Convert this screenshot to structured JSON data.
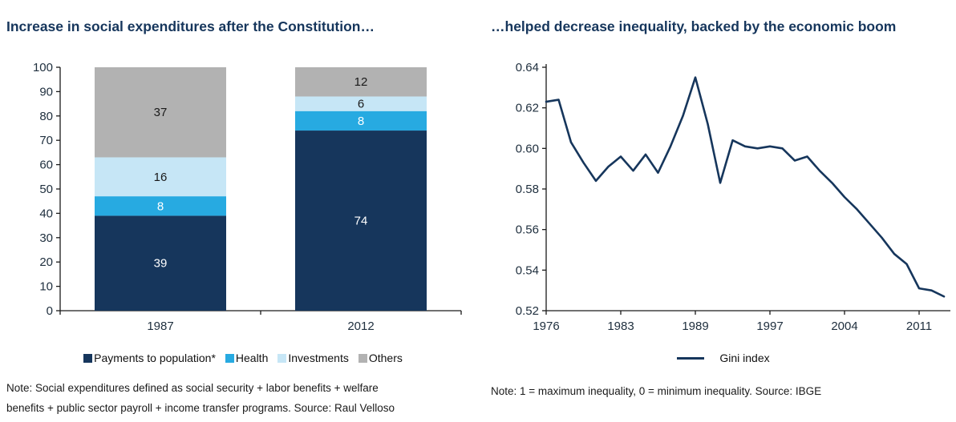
{
  "left_chart": {
    "title": "Increase in social expenditures after the Constitution…",
    "note_lines": [
      "Note: Social expenditures defined as social security + labor benefits + welfare",
      "benefits + public sector payroll + income transfer programs. Source: Raul Velloso"
    ]
  },
  "right_chart": {
    "title": "…helped decrease inequality, backed by the economic boom",
    "legend_label": "Gini index",
    "note": "Note: 1 = maximum inequality, 0 = minimum inequality. Source: IBGE"
  },
  "colors": {
    "navy": "#16365c",
    "cyan": "#27aae1",
    "light_blue": "#c6e6f6",
    "gray": "#b2b2b2"
  },
  "chart_data": [
    {
      "type": "bar",
      "stacked": true,
      "title": "Increase in social expenditures after the Constitution…",
      "categories": [
        "1987",
        "2012"
      ],
      "series": [
        {
          "name": "Payments to population*",
          "color": "#16365c",
          "label_color": "#ffffff",
          "values": [
            39,
            74
          ]
        },
        {
          "name": "Health",
          "color": "#27aae1",
          "label_color": "#ffffff",
          "values": [
            8,
            8
          ]
        },
        {
          "name": "Investments",
          "color": "#c6e6f6",
          "label_color": "#1a1a1a",
          "values": [
            16,
            6
          ]
        },
        {
          "name": "Others",
          "color": "#b2b2b2",
          "label_color": "#1a1a1a",
          "values": [
            37,
            12
          ]
        }
      ],
      "ylim": [
        0,
        100
      ],
      "ytick_step": 10,
      "grid": false,
      "legend_position": "bottom"
    },
    {
      "type": "line",
      "title": "…helped decrease inequality, backed by the economic boom",
      "series_name": "Gini index",
      "color": "#16365c",
      "x": [
        1976,
        1977,
        1978,
        1979,
        1981,
        1982,
        1983,
        1984,
        1985,
        1986,
        1987,
        1988,
        1989,
        1990,
        1992,
        1993,
        1995,
        1996,
        1997,
        1998,
        1999,
        2001,
        2002,
        2003,
        2004,
        2005,
        2006,
        2007,
        2008,
        2009,
        2011,
        2012,
        2013
      ],
      "y": [
        0.623,
        0.624,
        0.603,
        0.593,
        0.584,
        0.591,
        0.596,
        0.589,
        0.597,
        0.588,
        0.601,
        0.616,
        0.635,
        0.612,
        0.583,
        0.604,
        0.601,
        0.6,
        0.601,
        0.6,
        0.594,
        0.596,
        0.589,
        0.583,
        0.576,
        0.57,
        0.563,
        0.556,
        0.548,
        0.543,
        0.531,
        0.53,
        0.527
      ],
      "xticks": [
        1976,
        1983,
        1989,
        1997,
        2004,
        2011
      ],
      "ylim": [
        0.52,
        0.64
      ],
      "ytick_step": 0.02,
      "grid": false,
      "legend_position": "bottom"
    }
  ]
}
